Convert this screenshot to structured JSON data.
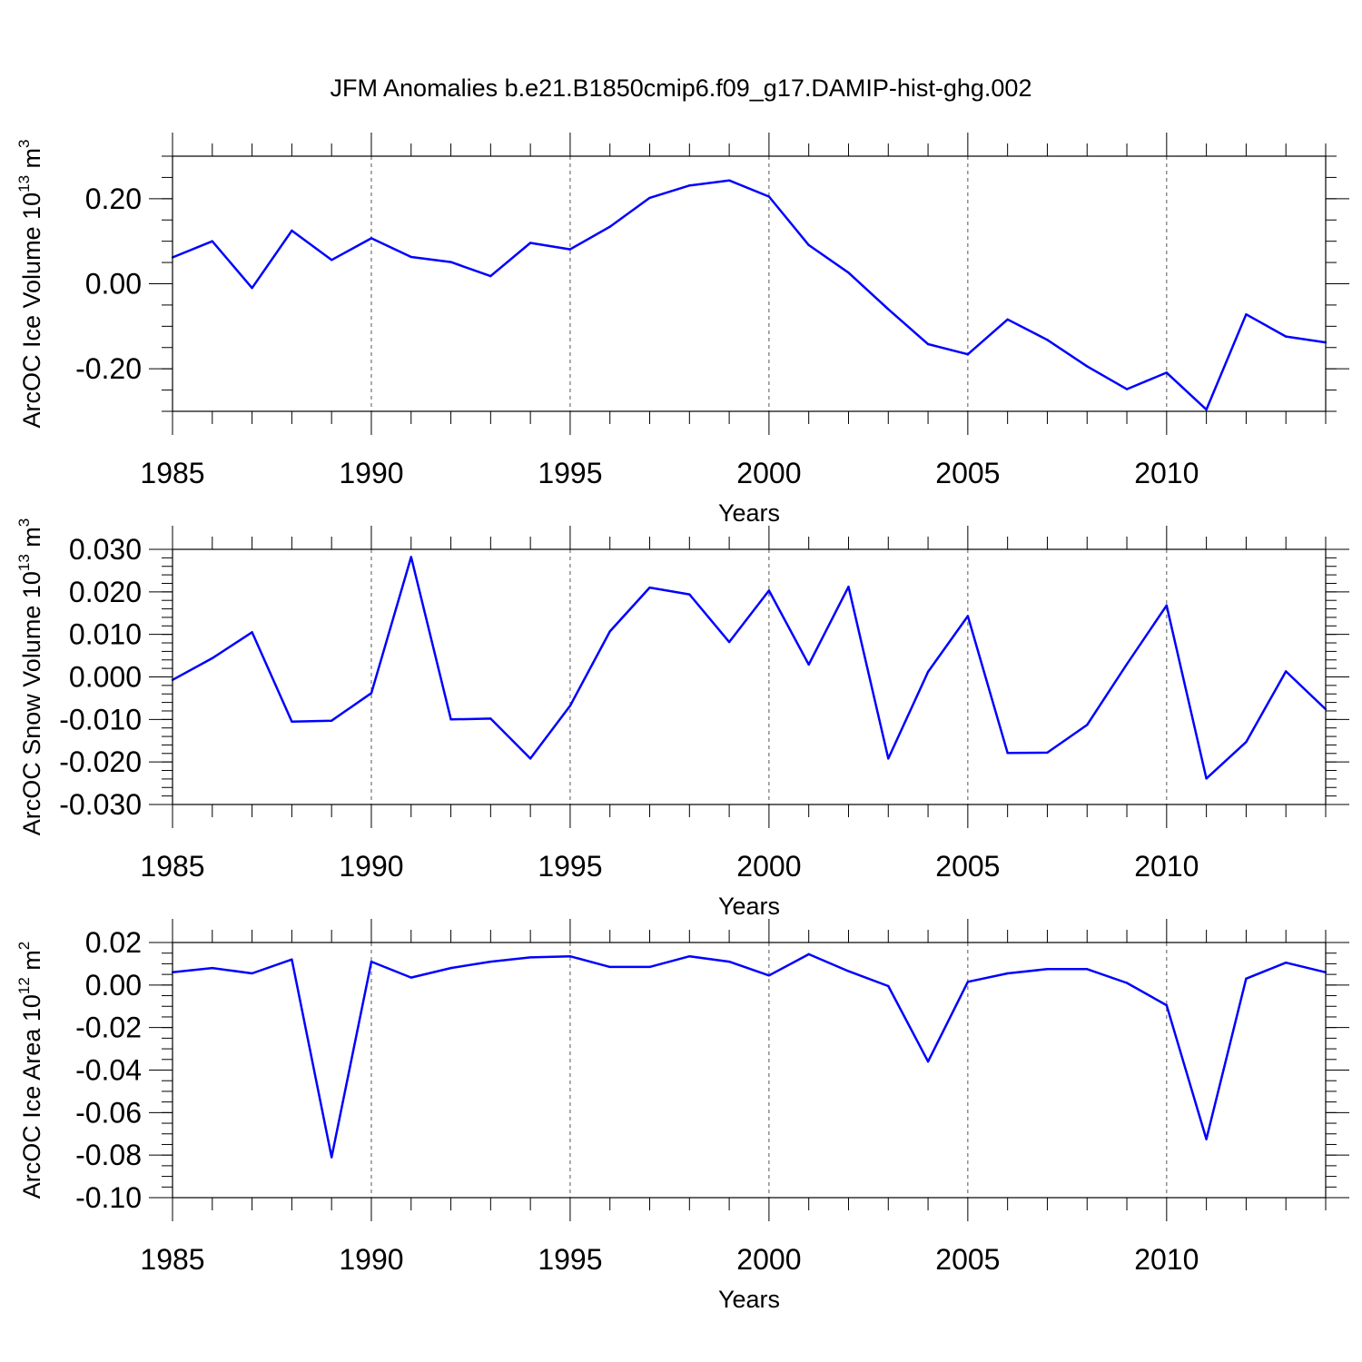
{
  "title": "JFM Anomalies b.e21.B1850cmip6.f09_g17.DAMIP-hist-ghg.002",
  "colors": {
    "line": "#0000ff",
    "axis": "#000000",
    "gridline": "#555555",
    "background": "#ffffff"
  },
  "chart_data": [
    {
      "type": "line",
      "ylabel": {
        "text": "ArcOC Ice Volume 10",
        "exp": "13",
        "unit": " m",
        "unit_exp": "3"
      },
      "xlabel": "Years",
      "xlim": [
        1985,
        2014
      ],
      "ylim": [
        -0.3,
        0.3
      ],
      "x_ticks": [
        "1985",
        "1990",
        "1995",
        "2000",
        "2005",
        "2010"
      ],
      "y_ticks": [
        {
          "value": 0.2,
          "label": "0.20"
        },
        {
          "value": 0.0,
          "label": "0.00"
        },
        {
          "value": -0.2,
          "label": "-0.20"
        }
      ],
      "y_minor_step": 0.05,
      "grid": "dashed vertical at major x ticks",
      "x": [
        1985,
        1986,
        1987,
        1988,
        1989,
        1990,
        1991,
        1992,
        1993,
        1994,
        1995,
        1996,
        1997,
        1998,
        1999,
        2000,
        2001,
        2002,
        2003,
        2004,
        2005,
        2006,
        2007,
        2008,
        2009,
        2010,
        2011,
        2012,
        2013,
        2014
      ],
      "values": [
        0.062,
        0.1,
        -0.01,
        0.125,
        0.056,
        0.107,
        0.063,
        0.051,
        0.018,
        0.096,
        0.081,
        0.134,
        0.202,
        0.231,
        0.243,
        0.205,
        0.091,
        0.026,
        -0.06,
        -0.142,
        -0.166,
        -0.084,
        -0.132,
        -0.194,
        -0.248,
        -0.209,
        -0.296,
        -0.072,
        -0.124,
        -0.138
      ]
    },
    {
      "type": "line",
      "ylabel": {
        "text": "ArcOC Snow Volume 10",
        "exp": "13",
        "unit": " m",
        "unit_exp": "3"
      },
      "xlabel": "Years",
      "xlim": [
        1985,
        2014
      ],
      "ylim": [
        -0.03,
        0.03
      ],
      "x_ticks": [
        "1985",
        "1990",
        "1995",
        "2000",
        "2005",
        "2010"
      ],
      "y_ticks": [
        {
          "value": 0.03,
          "label": "0.030"
        },
        {
          "value": 0.02,
          "label": "0.020"
        },
        {
          "value": 0.01,
          "label": "0.010"
        },
        {
          "value": 0.0,
          "label": "0.000"
        },
        {
          "value": -0.01,
          "label": "-0.010"
        },
        {
          "value": -0.02,
          "label": "-0.020"
        },
        {
          "value": -0.03,
          "label": "-0.030"
        }
      ],
      "y_minor_step": 0.002,
      "grid": "dashed vertical at major x ticks",
      "x": [
        1985,
        1986,
        1987,
        1988,
        1989,
        1990,
        1991,
        1992,
        1993,
        1994,
        1995,
        1996,
        1997,
        1998,
        1999,
        2000,
        2001,
        2002,
        2003,
        2004,
        2005,
        2006,
        2007,
        2008,
        2009,
        2010,
        2011,
        2012,
        2013,
        2014
      ],
      "values": [
        -0.0007,
        0.0044,
        0.0105,
        -0.0105,
        -0.0103,
        -0.0038,
        0.0282,
        -0.01,
        -0.0098,
        -0.0192,
        -0.0068,
        0.0107,
        0.021,
        0.0194,
        0.0082,
        0.0203,
        0.0029,
        0.0212,
        -0.0192,
        0.0012,
        0.0143,
        -0.0179,
        -0.0178,
        -0.0113,
        0.003,
        0.0168,
        -0.0239,
        -0.0153,
        0.0013,
        -0.0076
      ]
    },
    {
      "type": "line",
      "ylabel": {
        "text": "ArcOC Ice Area 10",
        "exp": "12",
        "unit": " m",
        "unit_exp": "2"
      },
      "xlabel": "Years",
      "xlim": [
        1985,
        2014
      ],
      "ylim": [
        -0.1,
        0.02
      ],
      "x_ticks": [
        "1985",
        "1990",
        "1995",
        "2000",
        "2005",
        "2010"
      ],
      "y_ticks": [
        {
          "value": 0.02,
          "label": "0.02"
        },
        {
          "value": 0.0,
          "label": "0.00"
        },
        {
          "value": -0.02,
          "label": "-0.02"
        },
        {
          "value": -0.04,
          "label": "-0.04"
        },
        {
          "value": -0.06,
          "label": "-0.06"
        },
        {
          "value": -0.08,
          "label": "-0.08"
        },
        {
          "value": -0.1,
          "label": "-0.10"
        }
      ],
      "y_minor_step": 0.005,
      "grid": "dashed vertical at major x ticks",
      "x": [
        1985,
        1986,
        1987,
        1988,
        1989,
        1990,
        1991,
        1992,
        1993,
        1994,
        1995,
        1996,
        1997,
        1998,
        1999,
        2000,
        2001,
        2002,
        2003,
        2004,
        2005,
        2006,
        2007,
        2008,
        2009,
        2010,
        2011,
        2012,
        2013,
        2014
      ],
      "values": [
        0.006,
        0.008,
        0.0055,
        0.012,
        -0.081,
        0.011,
        0.0035,
        0.008,
        0.011,
        0.013,
        0.0135,
        0.0085,
        0.0085,
        0.0135,
        0.011,
        0.0045,
        0.0145,
        0.0065,
        -0.0005,
        -0.036,
        0.0015,
        0.0055,
        0.0075,
        0.0075,
        0.001,
        -0.0095,
        -0.0725,
        0.003,
        0.0105,
        0.006
      ]
    }
  ]
}
